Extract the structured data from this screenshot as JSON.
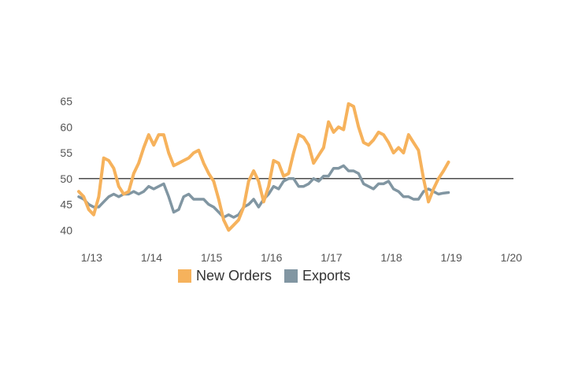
{
  "chart_data": {
    "type": "line",
    "title": "",
    "xlabel": "",
    "ylabel": "",
    "x_start": "2013-01",
    "x_end": "2020-01",
    "x_ticks": [
      "1/13",
      "1/14",
      "1/15",
      "1/16",
      "1/17",
      "1/18",
      "1/19",
      "1/20"
    ],
    "x_tick_dates": [
      "2013-01",
      "2014-01",
      "2015-01",
      "2016-01",
      "2017-01",
      "2018-01",
      "2019-01",
      "2020-01"
    ],
    "ylim": [
      37,
      66
    ],
    "y_ticks": [
      40,
      45,
      50,
      55,
      60,
      65
    ],
    "reference_line": 50,
    "grid": false,
    "legend_position": "bottom-center",
    "series": [
      {
        "name": "New Orders",
        "color": "#f6b25c",
        "points": [
          [
            "2012-12",
            47.5
          ],
          [
            "2013-01",
            46.5
          ],
          [
            "2013-02",
            44
          ],
          [
            "2013-03",
            43
          ],
          [
            "2013-04",
            46.5
          ],
          [
            "2013-05",
            54
          ],
          [
            "2013-06",
            53.5
          ],
          [
            "2013-07",
            52
          ],
          [
            "2013-08",
            48.5
          ],
          [
            "2013-09",
            47
          ],
          [
            "2013-10",
            47.5
          ],
          [
            "2013-11",
            51
          ],
          [
            "2013-12",
            53
          ],
          [
            "2014-01",
            56
          ],
          [
            "2014-02",
            58.5
          ],
          [
            "2014-03",
            56.5
          ],
          [
            "2014-04",
            58.5
          ],
          [
            "2014-05",
            58.5
          ],
          [
            "2014-06",
            55
          ],
          [
            "2014-07",
            52.5
          ],
          [
            "2014-08",
            53
          ],
          [
            "2014-09",
            53.5
          ],
          [
            "2014-10",
            54
          ],
          [
            "2014-11",
            55
          ],
          [
            "2014-12",
            55.5
          ],
          [
            "2015-01",
            53
          ],
          [
            "2015-02",
            51
          ],
          [
            "2015-03",
            49.5
          ],
          [
            "2015-04",
            46
          ],
          [
            "2015-05",
            42
          ],
          [
            "2015-06",
            40
          ],
          [
            "2015-07",
            41
          ],
          [
            "2015-08",
            42
          ],
          [
            "2015-09",
            44.5
          ],
          [
            "2015-10",
            49.5
          ],
          [
            "2015-11",
            51.5
          ],
          [
            "2015-12",
            49.5
          ],
          [
            "2016-01",
            45.5
          ],
          [
            "2016-02",
            48.5
          ],
          [
            "2016-03",
            53.5
          ],
          [
            "2016-04",
            53
          ],
          [
            "2016-05",
            50.5
          ],
          [
            "2016-06",
            51
          ],
          [
            "2016-07",
            55
          ],
          [
            "2016-08",
            58.5
          ],
          [
            "2016-09",
            58
          ],
          [
            "2016-10",
            56.5
          ],
          [
            "2016-11",
            53
          ],
          [
            "2016-12",
            54.5
          ],
          [
            "2017-01",
            56
          ],
          [
            "2017-02",
            61
          ],
          [
            "2017-03",
            59
          ],
          [
            "2017-04",
            60
          ],
          [
            "2017-05",
            59.5
          ],
          [
            "2017-06",
            64.5
          ],
          [
            "2017-07",
            64
          ],
          [
            "2017-08",
            60
          ],
          [
            "2017-09",
            57
          ],
          [
            "2017-10",
            56.5
          ],
          [
            "2017-11",
            57.5
          ],
          [
            "2017-12",
            59
          ],
          [
            "2018-01",
            58.5
          ],
          [
            "2018-02",
            57
          ],
          [
            "2018-03",
            55
          ],
          [
            "2018-04",
            56
          ],
          [
            "2018-05",
            55
          ],
          [
            "2018-06",
            58.5
          ],
          [
            "2018-07",
            57
          ],
          [
            "2018-08",
            55.5
          ],
          [
            "2018-09",
            50
          ],
          [
            "2018-10",
            45.5
          ],
          [
            "2018-11",
            48
          ],
          [
            "2018-12",
            50
          ],
          [
            "2019-01",
            51.5
          ],
          [
            "2019-02",
            53.2
          ]
        ]
      },
      {
        "name": "Exports",
        "color": "#8196a2",
        "points": [
          [
            "2012-12",
            46.5
          ],
          [
            "2013-01",
            46
          ],
          [
            "2013-02",
            45
          ],
          [
            "2013-03",
            44.5
          ],
          [
            "2013-04",
            44.5
          ],
          [
            "2013-05",
            45.5
          ],
          [
            "2013-06",
            46.5
          ],
          [
            "2013-07",
            47
          ],
          [
            "2013-08",
            46.5
          ],
          [
            "2013-09",
            47
          ],
          [
            "2013-10",
            47
          ],
          [
            "2013-11",
            47.5
          ],
          [
            "2013-12",
            47
          ],
          [
            "2014-01",
            47.5
          ],
          [
            "2014-02",
            48.5
          ],
          [
            "2014-03",
            48
          ],
          [
            "2014-04",
            48.5
          ],
          [
            "2014-05",
            49
          ],
          [
            "2014-06",
            46.5
          ],
          [
            "2014-07",
            43.5
          ],
          [
            "2014-08",
            44
          ],
          [
            "2014-09",
            46.5
          ],
          [
            "2014-10",
            47
          ],
          [
            "2014-11",
            46
          ],
          [
            "2014-12",
            46
          ],
          [
            "2015-01",
            46
          ],
          [
            "2015-02",
            45
          ],
          [
            "2015-03",
            44.5
          ],
          [
            "2015-04",
            43.5
          ],
          [
            "2015-05",
            42.5
          ],
          [
            "2015-06",
            43
          ],
          [
            "2015-07",
            42.5
          ],
          [
            "2015-08",
            43
          ],
          [
            "2015-09",
            44.5
          ],
          [
            "2015-10",
            45
          ],
          [
            "2015-11",
            46
          ],
          [
            "2015-12",
            44.5
          ],
          [
            "2016-01",
            46
          ],
          [
            "2016-02",
            47
          ],
          [
            "2016-03",
            48.5
          ],
          [
            "2016-04",
            48
          ],
          [
            "2016-05",
            49.5
          ],
          [
            "2016-06",
            50
          ],
          [
            "2016-07",
            50
          ],
          [
            "2016-08",
            48.5
          ],
          [
            "2016-09",
            48.5
          ],
          [
            "2016-10",
            49
          ],
          [
            "2016-11",
            50
          ],
          [
            "2016-12",
            49.5
          ],
          [
            "2017-01",
            50.5
          ],
          [
            "2017-02",
            50.5
          ],
          [
            "2017-03",
            52
          ],
          [
            "2017-04",
            52
          ],
          [
            "2017-05",
            52.5
          ],
          [
            "2017-06",
            51.5
          ],
          [
            "2017-07",
            51.5
          ],
          [
            "2017-08",
            51
          ],
          [
            "2017-09",
            49
          ],
          [
            "2017-10",
            48.5
          ],
          [
            "2017-11",
            48
          ],
          [
            "2017-12",
            49
          ],
          [
            "2018-01",
            49
          ],
          [
            "2018-02",
            49.5
          ],
          [
            "2018-03",
            48
          ],
          [
            "2018-04",
            47.5
          ],
          [
            "2018-05",
            46.5
          ],
          [
            "2018-06",
            46.5
          ],
          [
            "2018-07",
            46
          ],
          [
            "2018-08",
            46
          ],
          [
            "2018-09",
            47.5
          ],
          [
            "2018-10",
            48
          ],
          [
            "2018-11",
            47.5
          ],
          [
            "2018-12",
            47
          ],
          [
            "2019-01",
            47.2
          ],
          [
            "2019-02",
            47.3
          ]
        ]
      }
    ]
  }
}
